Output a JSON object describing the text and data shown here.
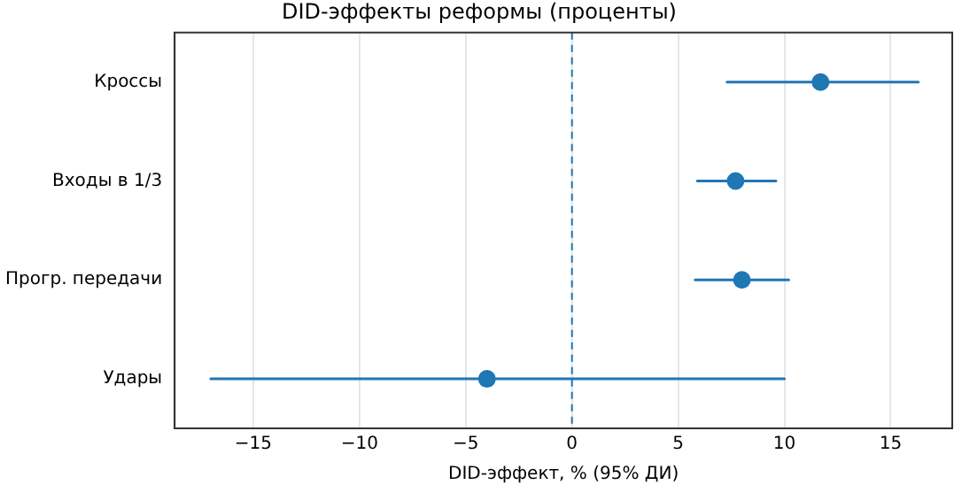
{
  "chart_data": {
    "type": "scatter",
    "orientation": "horizontal",
    "title": "DID-эффекты реформы (проценты)",
    "xlabel": "DID-эффект, % (95% ДИ)",
    "categories": [
      "Кроссы",
      "Входы в 1/3",
      "Прогр. передачи",
      "Удары"
    ],
    "values": [
      11.7,
      7.7,
      8.0,
      -4.0
    ],
    "errors": [
      [
        7.3,
        16.3
      ],
      [
        5.9,
        9.6
      ],
      [
        5.8,
        10.2
      ],
      [
        -17.0,
        10.0
      ]
    ],
    "color": "#1f77b4",
    "marker": "circle",
    "xlim": [
      -18.7,
      17.9
    ],
    "xticks": [
      {
        "value": -15,
        "label": "−15"
      },
      {
        "value": -10,
        "label": "−10"
      },
      {
        "value": -5,
        "label": "−5"
      },
      0,
      5,
      10,
      15
    ],
    "ref_lines": [
      {
        "axis": "x",
        "value": 0,
        "color": "#1f77b4",
        "line_style": "dashed"
      }
    ],
    "grid": "x"
  }
}
